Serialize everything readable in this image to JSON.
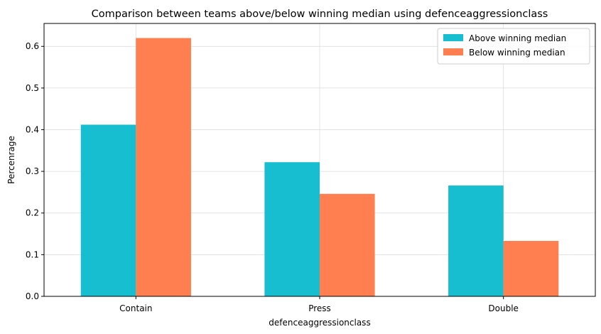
{
  "chart_data": {
    "type": "bar",
    "title": "Comparison between teams above/below winning median using defenceaggressionclass",
    "xlabel": "defenceaggressionclass",
    "ylabel": "Percenrage",
    "categories": [
      "Contain",
      "Press",
      "Double"
    ],
    "series": [
      {
        "name": "Above winning median",
        "color": "#17becf",
        "values": [
          0.412,
          0.322,
          0.266
        ]
      },
      {
        "name": "Below winning median",
        "color": "#ff7f50",
        "values": [
          0.62,
          0.246,
          0.133
        ]
      }
    ],
    "ylim": [
      0,
      0.655
    ],
    "yticks": [
      0.0,
      0.1,
      0.2,
      0.3,
      0.4,
      0.5,
      0.6
    ],
    "ytick_labels": [
      "0.0",
      "0.1",
      "0.2",
      "0.3",
      "0.4",
      "0.5",
      "0.6"
    ],
    "grid": true,
    "legend_position": "top-right"
  }
}
